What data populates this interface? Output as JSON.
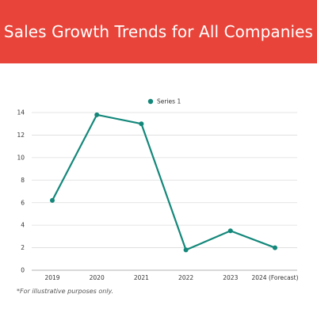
{
  "header": {
    "title": "Sales Growth Trends for All Companies",
    "background_color": "#e8443a"
  },
  "footnote": "*For illustrative purposes only.",
  "chart_data": {
    "type": "line",
    "categories": [
      "2019",
      "2020",
      "2021",
      "2022",
      "2023",
      "2024 (Forecast)"
    ],
    "series": [
      {
        "name": "Series 1",
        "values": [
          6.2,
          13.8,
          13.0,
          1.8,
          3.5,
          2.0
        ],
        "color": "#13877a"
      }
    ],
    "ylim": [
      0,
      14
    ],
    "yticks": [
      0,
      2,
      4,
      6,
      8,
      10,
      12,
      14
    ],
    "grid": true,
    "legend": "top-center",
    "title": "",
    "xlabel": "",
    "ylabel": ""
  }
}
